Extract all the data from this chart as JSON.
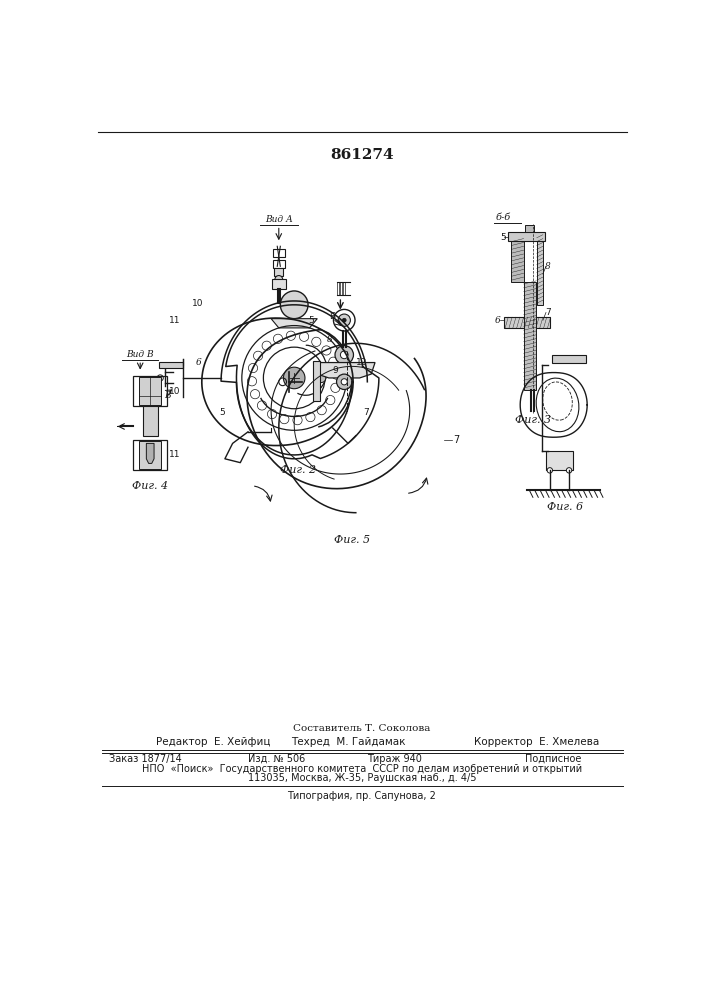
{
  "patent_number": "861274",
  "background_color": "#ffffff",
  "line_color": "#1a1a1a",
  "hatch_color": "#888888",
  "bottom_section": {
    "compositor": "Составитель Т. Соколова",
    "editor": "Редактор  Е. Хейфиц",
    "techred": "Техред  М. Гайдамак",
    "corrector": "Корректор  Е. Хмелева",
    "order": "Заказ 1877/14",
    "edition": "Изд. № 506",
    "circulation": "Тираж 940",
    "subscription": "Подписное",
    "npo": "НПО  «Поиск»  Государственного комитета  СССР по делам изобретений и открытий",
    "address": "113035, Москва, Ж-35, Раушская наб., д. 4/5",
    "typography": "Типография, пр. Сапунова, 2"
  }
}
